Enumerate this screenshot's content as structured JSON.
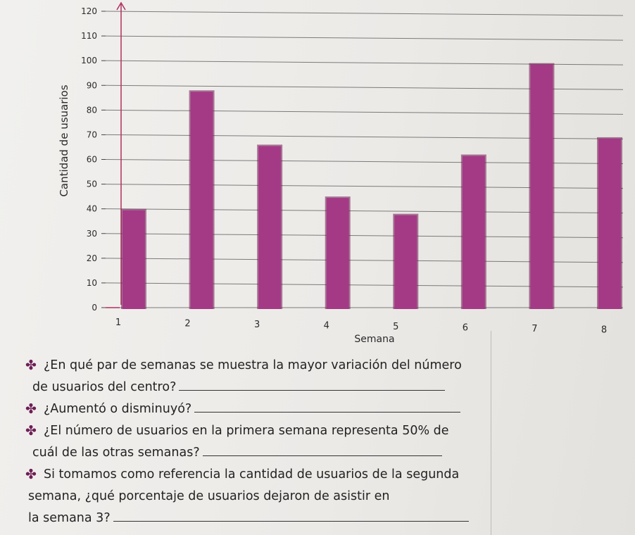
{
  "chart_data": {
    "type": "bar",
    "title": "",
    "xlabel": "Semana",
    "ylabel": "Cantidad de usuarios",
    "categories": [
      "1",
      "2",
      "3",
      "4",
      "5",
      "6",
      "7",
      "8"
    ],
    "values": [
      40,
      88,
      66,
      45,
      38,
      62,
      99,
      69
    ],
    "ylim": [
      0,
      120
    ],
    "yticks": [
      "0",
      "10",
      "20",
      "30",
      "40",
      "50",
      "60",
      "70",
      "80",
      "90",
      "100",
      "110",
      "120"
    ],
    "grid": true,
    "bar_color": "#a43a85"
  },
  "questions": [
    {
      "lines": [
        "¿En qué par de semanas se muestra la mayor variación del número",
        "de usuarios del centro?"
      ]
    },
    {
      "lines": [
        "¿Aumentó o disminuyó?"
      ]
    },
    {
      "lines": [
        "¿El número de usuarios en la primera semana representa 50% de",
        "cuál de las otras semanas?"
      ]
    },
    {
      "lines": [
        "Si tomamos como referencia la cantidad de usuarios de la segunda",
        "semana, ¿qué porcentaje de usuarios dejaron de asistir en",
        "la semana 3?"
      ]
    }
  ],
  "bullet_glyph": "✤"
}
